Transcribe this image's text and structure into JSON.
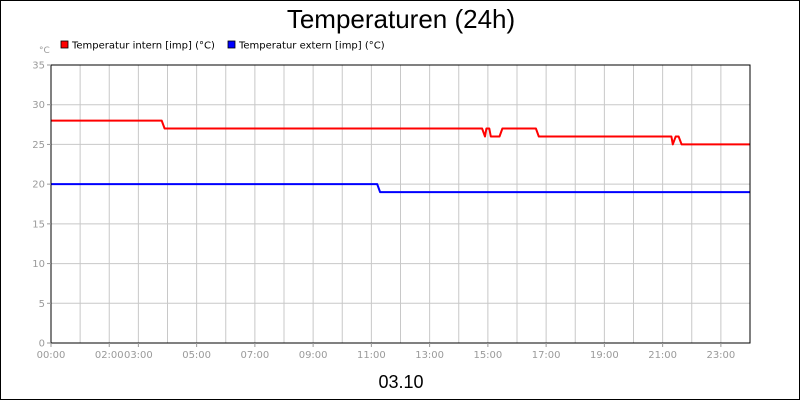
{
  "chart_data": {
    "type": "line",
    "title": "Temperaturen (24h)",
    "date_label": "03.10",
    "y_unit": "°C",
    "ylim": [
      0,
      35
    ],
    "y_ticks": [
      0,
      5,
      10,
      15,
      20,
      25,
      30,
      35
    ],
    "x_range_hours": [
      0,
      24
    ],
    "x_ticks": [
      {
        "hour": 0,
        "label": "00:00"
      },
      {
        "hour": 2,
        "label": "02:00"
      },
      {
        "hour": 3,
        "label": "03:00"
      },
      {
        "hour": 5,
        "label": "05:00"
      },
      {
        "hour": 7,
        "label": "07:00"
      },
      {
        "hour": 9,
        "label": "09:00"
      },
      {
        "hour": 11,
        "label": "11:00"
      },
      {
        "hour": 13,
        "label": "13:00"
      },
      {
        "hour": 15,
        "label": "15:00"
      },
      {
        "hour": 17,
        "label": "17:00"
      },
      {
        "hour": 19,
        "label": "19:00"
      },
      {
        "hour": 21,
        "label": "21:00"
      },
      {
        "hour": 23,
        "label": "23:00"
      }
    ],
    "gridlines_hours": [
      1,
      2,
      3,
      4,
      5,
      6,
      7,
      8,
      9,
      10,
      11,
      12,
      13,
      14,
      15,
      16,
      17,
      18,
      19,
      20,
      21,
      22,
      23
    ],
    "grid": true,
    "legend_position": "top-left",
    "series": [
      {
        "name": "Temperatur intern [imp] (°C)",
        "color": "#ff0000",
        "points": [
          [
            0,
            28
          ],
          [
            3.8,
            28
          ],
          [
            3.9,
            27
          ],
          [
            14.8,
            27
          ],
          [
            14.9,
            26
          ],
          [
            14.95,
            27
          ],
          [
            15.05,
            27
          ],
          [
            15.1,
            26
          ],
          [
            15.4,
            26
          ],
          [
            15.5,
            27
          ],
          [
            16.65,
            27
          ],
          [
            16.75,
            26
          ],
          [
            21.3,
            26
          ],
          [
            21.35,
            25
          ],
          [
            21.45,
            26
          ],
          [
            21.55,
            26
          ],
          [
            21.65,
            25
          ],
          [
            24,
            25
          ]
        ]
      },
      {
        "name": "Temperatur extern [imp] (°C)",
        "color": "#0000ff",
        "points": [
          [
            0,
            20
          ],
          [
            11.2,
            20
          ],
          [
            11.3,
            19
          ],
          [
            24,
            19
          ]
        ]
      }
    ]
  }
}
